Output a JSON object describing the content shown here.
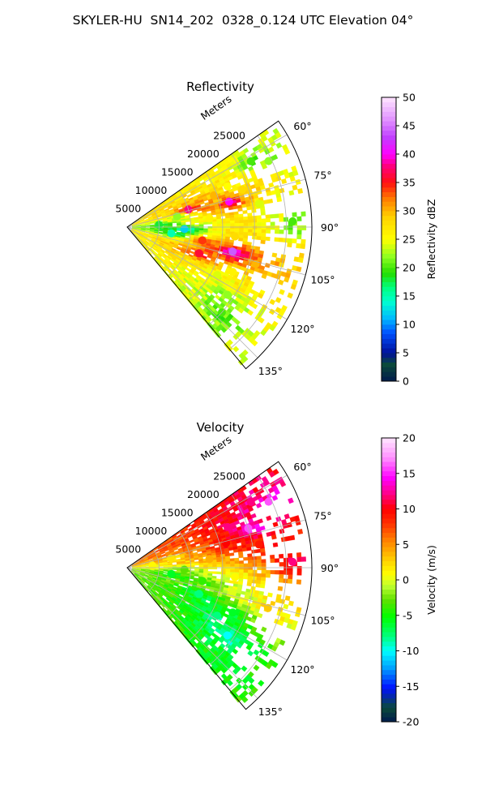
{
  "suptitle": "SKYLER-HU  SN14_202  0328_0.124 UTC Elevation 04°",
  "chart_data": [
    {
      "type": "heatmap",
      "title": "Reflectivity",
      "radial_label": "Meters",
      "range_ticks": [
        5000,
        10000,
        15000,
        20000,
        25000
      ],
      "rmax": 29000,
      "azimuth_ticks": [
        "60°",
        "75°",
        "90°",
        "105°",
        "120°",
        "135°"
      ],
      "azimuth_range_deg": [
        55,
        140
      ],
      "colorbar": {
        "label": "Reflectivity dBZ",
        "vmin": 0,
        "vmax": 50,
        "ticks": [
          "0",
          "5",
          "10",
          "15",
          "20",
          "25",
          "30",
          "35",
          "40",
          "45",
          "50"
        ]
      },
      "cells": [
        {
          "az": 62,
          "r": 22000,
          "v": 20
        },
        {
          "az": 65,
          "r": 24500,
          "v": 22
        },
        {
          "az": 68,
          "r": 17000,
          "v": 25
        },
        {
          "az": 70,
          "r": 14500,
          "v": 30
        },
        {
          "az": 72,
          "r": 19000,
          "v": 28
        },
        {
          "az": 74,
          "r": 10000,
          "v": 38
        },
        {
          "az": 76,
          "r": 16500,
          "v": 40
        },
        {
          "az": 78,
          "r": 8000,
          "v": 22
        },
        {
          "az": 80,
          "r": 21000,
          "v": 24
        },
        {
          "az": 84,
          "r": 13000,
          "v": 26
        },
        {
          "az": 86,
          "r": 5000,
          "v": 18
        },
        {
          "az": 88,
          "r": 26000,
          "v": 20
        },
        {
          "az": 92,
          "r": 9000,
          "v": 12
        },
        {
          "az": 95,
          "r": 17000,
          "v": 28
        },
        {
          "az": 98,
          "r": 7000,
          "v": 15
        },
        {
          "az": 100,
          "r": 12000,
          "v": 34
        },
        {
          "az": 103,
          "r": 17000,
          "v": 44
        },
        {
          "az": 106,
          "r": 21000,
          "v": 30
        },
        {
          "az": 110,
          "r": 12000,
          "v": 36
        },
        {
          "az": 113,
          "r": 18000,
          "v": 26
        },
        {
          "az": 118,
          "r": 16000,
          "v": 24
        },
        {
          "az": 124,
          "r": 19000,
          "v": 22
        },
        {
          "az": 132,
          "r": 20000,
          "v": 20
        }
      ]
    },
    {
      "type": "heatmap",
      "title": "Velocity",
      "radial_label": "Meters",
      "range_ticks": [
        5000,
        10000,
        15000,
        20000,
        25000
      ],
      "rmax": 29000,
      "azimuth_ticks": [
        "60°",
        "75°",
        "90°",
        "105°",
        "120°",
        "135°"
      ],
      "azimuth_range_deg": [
        55,
        140
      ],
      "colorbar": {
        "label": "Velocity (m/s)",
        "vmin": -20,
        "vmax": 20,
        "ticks": [
          "-20",
          "-15",
          "-10",
          "-5",
          "0",
          "5",
          "10",
          "15",
          "20"
        ]
      },
      "cells": [
        {
          "az": 62,
          "r": 22000,
          "v": 12
        },
        {
          "az": 65,
          "r": 24500,
          "v": 16
        },
        {
          "az": 68,
          "r": 17000,
          "v": 12
        },
        {
          "az": 70,
          "r": 14500,
          "v": 8
        },
        {
          "az": 72,
          "r": 20000,
          "v": 16
        },
        {
          "az": 74,
          "r": 10000,
          "v": 6
        },
        {
          "az": 76,
          "r": 16000,
          "v": 10
        },
        {
          "az": 78,
          "r": 7000,
          "v": 2
        },
        {
          "az": 80,
          "r": 21000,
          "v": 9
        },
        {
          "az": 84,
          "r": 13000,
          "v": 4
        },
        {
          "az": 86,
          "r": 4000,
          "v": 1
        },
        {
          "az": 88,
          "r": 26000,
          "v": 12
        },
        {
          "az": 92,
          "r": 9000,
          "v": -3
        },
        {
          "az": 95,
          "r": 17000,
          "v": 1
        },
        {
          "az": 98,
          "r": 7000,
          "v": -6
        },
        {
          "az": 100,
          "r": 12000,
          "v": -4
        },
        {
          "az": 103,
          "r": 17000,
          "v": 0
        },
        {
          "az": 106,
          "r": 23000,
          "v": 3
        },
        {
          "az": 110,
          "r": 12000,
          "v": -8
        },
        {
          "az": 113,
          "r": 18000,
          "v": -6
        },
        {
          "az": 118,
          "r": 16000,
          "v": -8
        },
        {
          "az": 124,
          "r": 19000,
          "v": -10
        },
        {
          "az": 132,
          "r": 20000,
          "v": -6
        }
      ]
    }
  ]
}
